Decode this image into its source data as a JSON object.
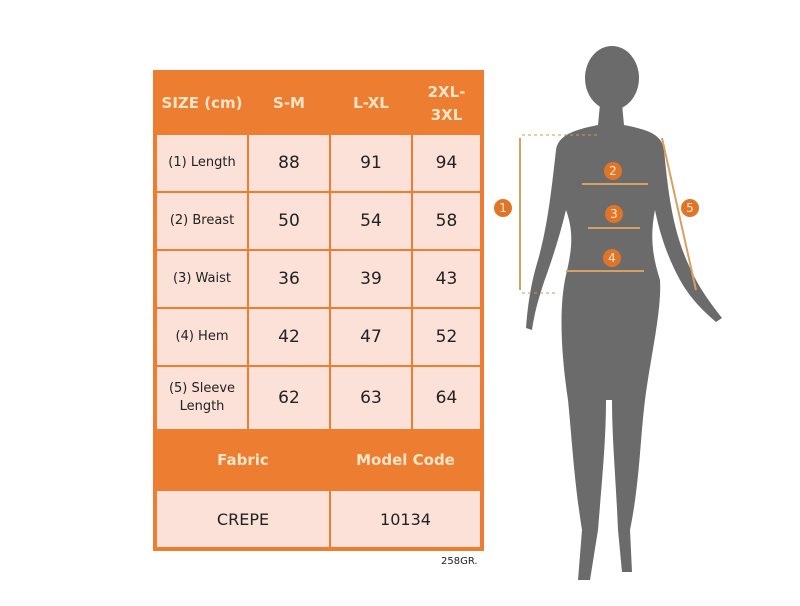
{
  "size_chart": {
    "headers": [
      "SIZE (cm)",
      "S-M",
      "L-XL",
      "2XL- 3XL"
    ],
    "rows": [
      {
        "label": "(1) Length",
        "values": [
          "88",
          "91",
          "94"
        ]
      },
      {
        "label": "(2) Breast",
        "values": [
          "50",
          "54",
          "58"
        ]
      },
      {
        "label": "(3) Waist",
        "values": [
          "36",
          "39",
          "43"
        ]
      },
      {
        "label": "(4) Hem",
        "values": [
          "42",
          "47",
          "52"
        ]
      },
      {
        "label": "(5) Sleeve Length",
        "values": [
          "62",
          "63",
          "64"
        ]
      }
    ],
    "fabric_label": "Fabric",
    "model_code_label": "Model Code",
    "fabric": "CREPE",
    "model_code": "10134"
  },
  "weight": "258GR.",
  "figure": {
    "markers": [
      "1",
      "2",
      "3",
      "4",
      "5"
    ]
  },
  "colors": {
    "accent": "#ed7d31",
    "cell": "#fbe1d8",
    "header_text": "#fde6c8",
    "silhouette": "#6b6b6b"
  }
}
